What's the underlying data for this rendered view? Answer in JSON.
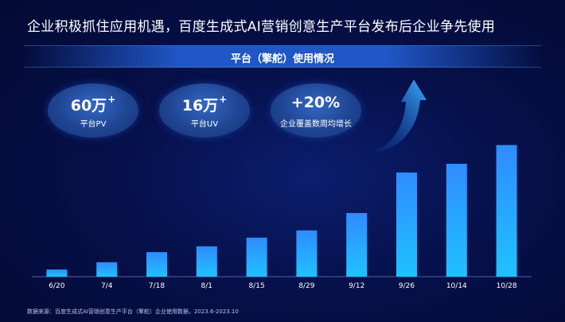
{
  "headline": "企业积极抓住应用机遇，百度生成式AI营销创意生产平台发布后企业争先使用",
  "banner": "平台（擎舵）使用情况",
  "kpis": [
    {
      "value": "60万",
      "plus": "+",
      "label": "平台PV"
    },
    {
      "value": "16万",
      "plus": "+",
      "label": "平台UV"
    },
    {
      "value": "+20%",
      "plus": "",
      "label": "企业覆盖数周均增长"
    }
  ],
  "footnote": "数据来源：百度生成式AI营销创意生产平台（擎舵）企业使用数据，2023.6-2023.10",
  "colors": {
    "bar_top": "#2f8cff",
    "bar_bottom": "#1fc2ff",
    "arrow": "#3aaeff"
  },
  "chart_data": {
    "type": "bar",
    "categories": [
      "6/20",
      "7/4",
      "7/18",
      "8/1",
      "8/15",
      "8/29",
      "9/12",
      "9/26",
      "10/14",
      "10/28"
    ],
    "values": [
      5,
      10,
      17,
      21,
      27,
      32,
      44,
      72,
      78,
      91
    ],
    "ylim": [
      0,
      100
    ],
    "grid": false,
    "y_axis_shown": false
  }
}
